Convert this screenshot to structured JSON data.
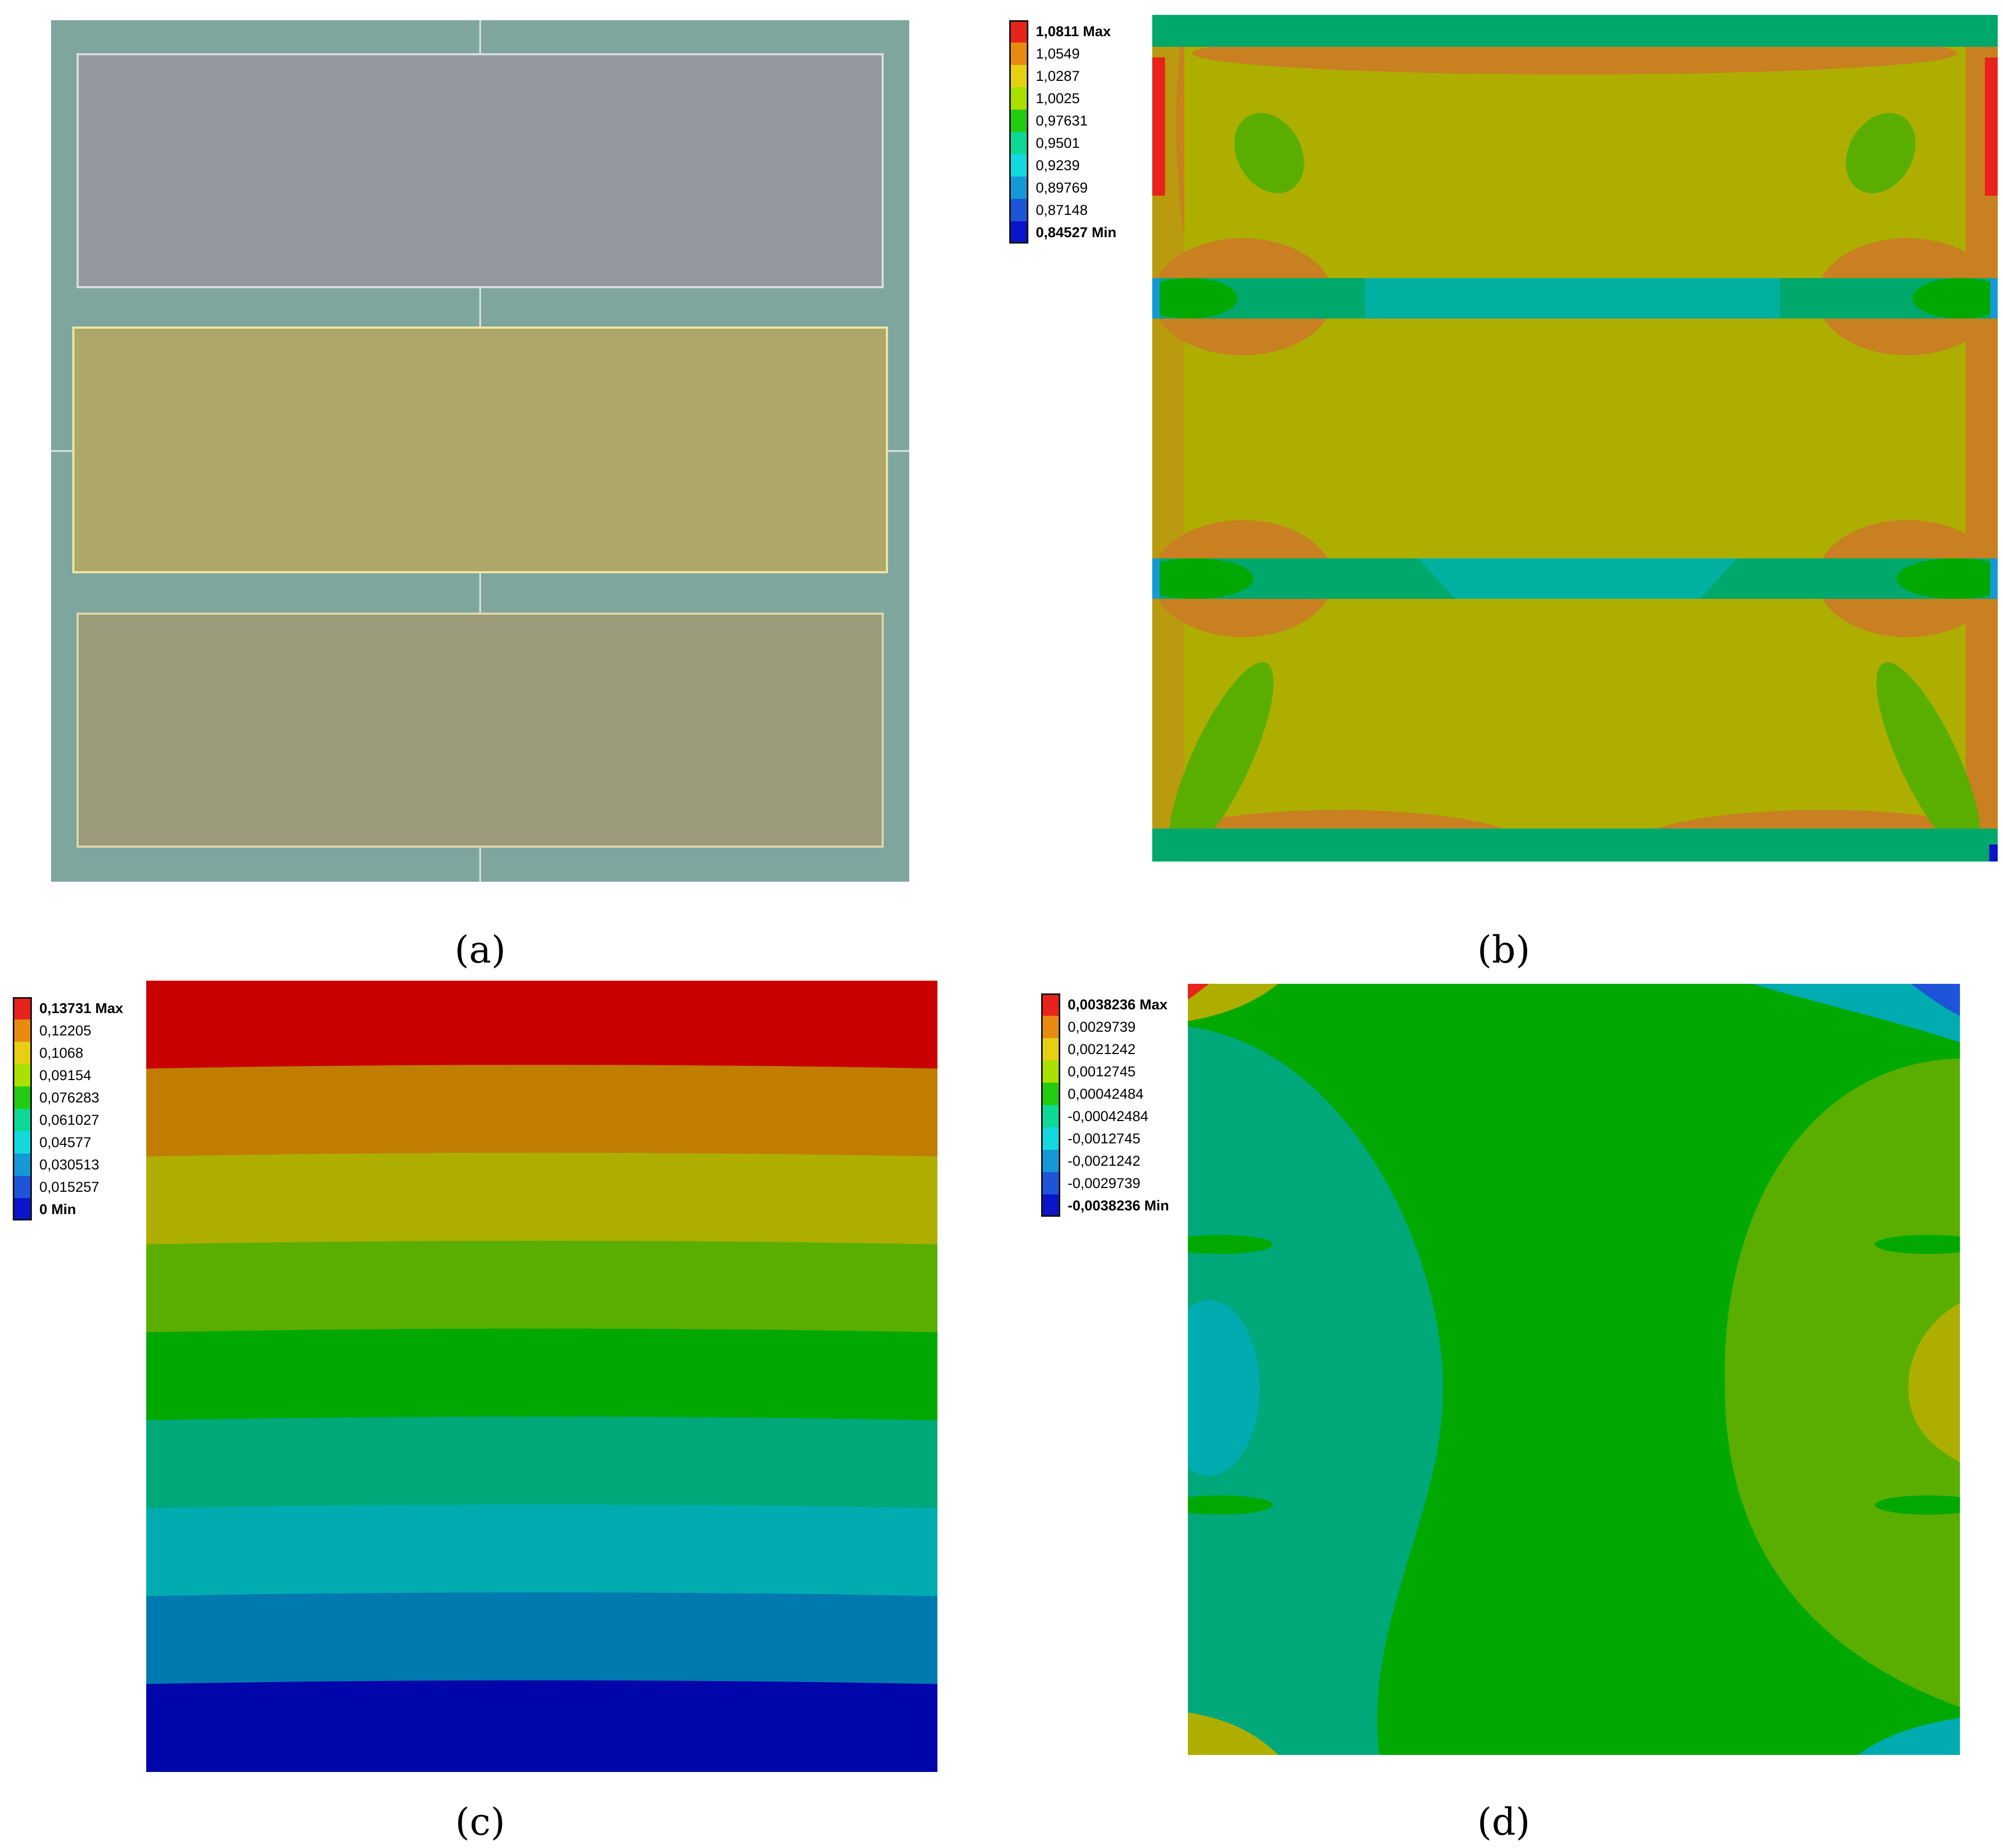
{
  "captions": {
    "a": "(a)",
    "b": "(b)",
    "c": "(c)",
    "d": "(d)"
  },
  "legends": {
    "b": {
      "labels": [
        "1,0811 Max",
        "1,0549",
        "1,0287",
        "1,0025",
        "0,97631",
        "0,9501",
        "0,9239",
        "0,89769",
        "0,87148",
        "0,84527 Min"
      ],
      "colors": [
        "#e8231b",
        "#e88a10",
        "#e6d014",
        "#a8e000",
        "#23cc12",
        "#0dd896",
        "#13d9de",
        "#1499d6",
        "#1e55d8",
        "#0a14c8"
      ]
    },
    "c": {
      "labels": [
        "0,13731 Max",
        "0,12205",
        "0,1068",
        "0,09154",
        "0,076283",
        "0,061027",
        "0,04577",
        "0,030513",
        "0,015257",
        "0 Min"
      ],
      "colors": [
        "#e8231b",
        "#e88a10",
        "#e6d014",
        "#a8e000",
        "#23cc12",
        "#0dd896",
        "#13d9de",
        "#1499d6",
        "#1e55d8",
        "#0a14c8"
      ]
    },
    "d": {
      "labels": [
        "0,0038236 Max",
        "0,0029739",
        "0,0021242",
        "0,0012745",
        "0,00042484",
        "-0,00042484",
        "-0,0012745",
        "-0,0021242",
        "-0,0029739",
        "-0,0038236 Min"
      ],
      "colors": [
        "#e8231b",
        "#e88a10",
        "#e6d014",
        "#a8e000",
        "#23cc12",
        "#0dd896",
        "#13d9de",
        "#1499d6",
        "#1e55d8",
        "#0a14c8"
      ]
    }
  },
  "colors": {
    "frame_a": "#7fa69e",
    "panel_top": "#9597a1",
    "panel_mid": "#aea769",
    "panel_bot": "#9b9b7b",
    "b_main": "#aeae00",
    "b_beam": "#00a86b",
    "b_beam_light": "#00b0a0",
    "b_orange": "#c88020",
    "b_green": "#5aae00",
    "c_bands": [
      "#c80000",
      "#c07d00",
      "#aeae00",
      "#5aae00",
      "#00a800",
      "#00a87a",
      "#00acb0",
      "#0079ae",
      "#0006aa"
    ],
    "d_main": "#00a800",
    "d_side": "#00a87a",
    "d_right": "#5aae00",
    "d_cyan": "#00acb0",
    "d_yellow": "#aeae00"
  }
}
